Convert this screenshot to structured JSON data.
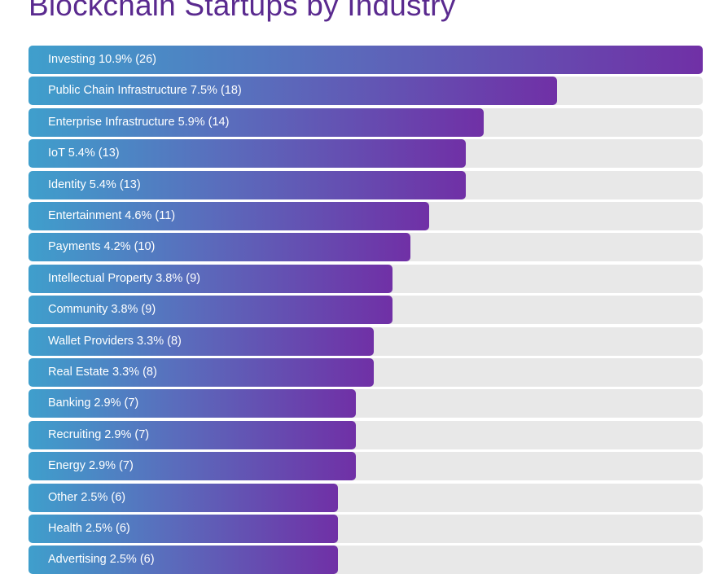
{
  "chart_data": {
    "type": "bar",
    "orientation": "horizontal",
    "title": "Blockchain Startups by Industry",
    "categories": [
      "Investing",
      "Public Chain Infrastructure",
      "Enterprise Infrastructure",
      "IoT",
      "Identity",
      "Entertainment",
      "Payments",
      "Intellectual Property",
      "Community",
      "Wallet Providers",
      "Real Estate",
      "Banking",
      "Recruiting",
      "Energy",
      "Other",
      "Health",
      "Advertising"
    ],
    "percents": [
      "10.9%",
      "7.5%",
      "5.9%",
      "5.4%",
      "5.4%",
      "4.6%",
      "4.2%",
      "3.8%",
      "3.8%",
      "3.3%",
      "3.3%",
      "2.9%",
      "2.9%",
      "2.9%",
      "2.5%",
      "2.5%",
      "2.5%"
    ],
    "values": [
      26,
      18,
      14,
      13,
      13,
      11,
      10,
      9,
      9,
      8,
      8,
      7,
      7,
      7,
      6,
      6,
      6
    ],
    "labels": [
      "Investing 10.9% (26)",
      "Public Chain Infrastructure 7.5% (18)",
      "Enterprise Infrastructure 5.9% (14)",
      "IoT 5.4% (13)",
      "Identity 5.4% (13)",
      "Entertainment 4.6% (11)",
      "Payments 4.2% (10)",
      "Intellectual Property 3.8% (9)",
      "Community 3.8% (9)",
      "Wallet Providers 3.3% (8)",
      "Real Estate 3.3% (8)",
      "Banking 2.9% (7)",
      "Recruiting 2.9% (7)",
      "Energy 2.9% (7)",
      "Other 2.5% (6)",
      "Health 2.5% (6)",
      "Advertising 2.5% (6)"
    ],
    "colors": {
      "gradient_start": "#3f9fcc",
      "gradient_end": "#7030a6",
      "track": "#e8e8e8",
      "title": "#5a2a8f"
    },
    "grid": false
  }
}
